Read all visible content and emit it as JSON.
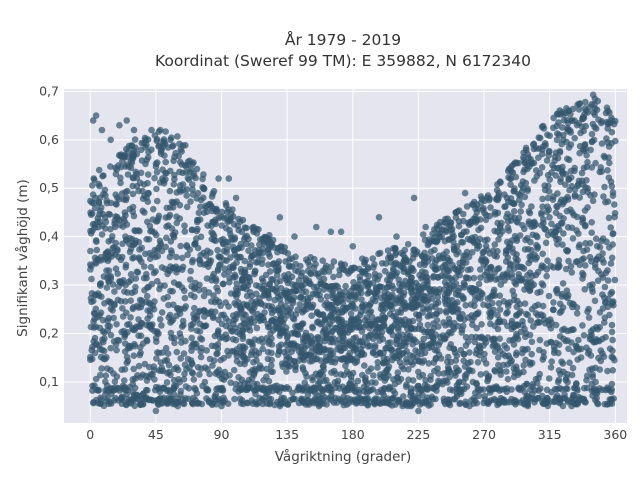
{
  "chart_data": {
    "type": "scatter",
    "title": "År 1979 - 2019",
    "subtitle": "Koordinat (Sweref 99 TM): E 359882, N 6172340",
    "xlabel": "Vågriktning (grader)",
    "ylabel": "Signifikant våghöjd (m)",
    "xlim": [
      -18,
      368
    ],
    "ylim": [
      0.015,
      0.705
    ],
    "x_ticks": [
      0,
      45,
      90,
      135,
      180,
      225,
      270,
      315,
      360
    ],
    "x_tick_labels": [
      "0",
      "45",
      "90",
      "135",
      "180",
      "225",
      "270",
      "315",
      "360"
    ],
    "y_ticks": [
      0.1,
      0.2,
      0.3,
      0.4,
      0.5,
      0.6,
      0.7
    ],
    "y_tick_labels": [
      "0,1",
      "0,2",
      "0,3",
      "0,4",
      "0,5",
      "0,6",
      "0,7"
    ],
    "grid": true,
    "marker_color": "#33566e",
    "background_color": "#e5e5ef",
    "envelope": {
      "direction": [
        0,
        10,
        20,
        30,
        40,
        50,
        60,
        70,
        80,
        90,
        100,
        110,
        120,
        130,
        140,
        150,
        160,
        170,
        180,
        190,
        200,
        210,
        220,
        230,
        240,
        250,
        260,
        270,
        280,
        290,
        300,
        310,
        320,
        330,
        340,
        350,
        360
      ],
      "dense_upper": [
        0.5,
        0.49,
        0.52,
        0.55,
        0.56,
        0.57,
        0.56,
        0.52,
        0.47,
        0.43,
        0.4,
        0.38,
        0.36,
        0.34,
        0.32,
        0.31,
        0.3,
        0.3,
        0.3,
        0.31,
        0.32,
        0.33,
        0.34,
        0.36,
        0.38,
        0.4,
        0.42,
        0.44,
        0.47,
        0.5,
        0.54,
        0.58,
        0.61,
        0.63,
        0.64,
        0.65,
        0.6
      ],
      "dense_lower": [
        0.17,
        0.17,
        0.17,
        0.17,
        0.17,
        0.17,
        0.17,
        0.17,
        0.16,
        0.16,
        0.15,
        0.15,
        0.14,
        0.14,
        0.14,
        0.14,
        0.14,
        0.14,
        0.14,
        0.14,
        0.14,
        0.14,
        0.14,
        0.14,
        0.14,
        0.14,
        0.14,
        0.15,
        0.15,
        0.15,
        0.16,
        0.16,
        0.16,
        0.16,
        0.17,
        0.17,
        0.17
      ],
      "max_observed": 0.68,
      "min_observed": 0.04
    },
    "outliers": [
      {
        "x": 2,
        "y": 0.64
      },
      {
        "x": 4,
        "y": 0.65
      },
      {
        "x": 8,
        "y": 0.62
      },
      {
        "x": 14,
        "y": 0.6
      },
      {
        "x": 20,
        "y": 0.63
      },
      {
        "x": 25,
        "y": 0.64
      },
      {
        "x": 30,
        "y": 0.62
      },
      {
        "x": 38,
        "y": 0.6
      },
      {
        "x": 42,
        "y": 0.62
      },
      {
        "x": 48,
        "y": 0.62
      },
      {
        "x": 55,
        "y": 0.6
      },
      {
        "x": 62,
        "y": 0.58
      },
      {
        "x": 70,
        "y": 0.55
      },
      {
        "x": 78,
        "y": 0.5
      },
      {
        "x": 88,
        "y": 0.52
      },
      {
        "x": 95,
        "y": 0.52
      },
      {
        "x": 100,
        "y": 0.48
      },
      {
        "x": 112,
        "y": 0.42
      },
      {
        "x": 130,
        "y": 0.44
      },
      {
        "x": 140,
        "y": 0.4
      },
      {
        "x": 155,
        "y": 0.42
      },
      {
        "x": 165,
        "y": 0.41
      },
      {
        "x": 172,
        "y": 0.41
      },
      {
        "x": 180,
        "y": 0.38
      },
      {
        "x": 198,
        "y": 0.44
      },
      {
        "x": 210,
        "y": 0.4
      },
      {
        "x": 222,
        "y": 0.48
      },
      {
        "x": 230,
        "y": 0.42
      },
      {
        "x": 240,
        "y": 0.43
      },
      {
        "x": 257,
        "y": 0.49
      },
      {
        "x": 265,
        "y": 0.45
      },
      {
        "x": 268,
        "y": 0.47
      },
      {
        "x": 280,
        "y": 0.48
      },
      {
        "x": 288,
        "y": 0.52
      },
      {
        "x": 300,
        "y": 0.57
      },
      {
        "x": 310,
        "y": 0.58
      },
      {
        "x": 320,
        "y": 0.6
      },
      {
        "x": 330,
        "y": 0.64
      },
      {
        "x": 340,
        "y": 0.66
      },
      {
        "x": 348,
        "y": 0.68
      },
      {
        "x": 355,
        "y": 0.66
      },
      {
        "x": 60,
        "y": 0.05
      },
      {
        "x": 90,
        "y": 0.05
      },
      {
        "x": 130,
        "y": 0.05
      },
      {
        "x": 220,
        "y": 0.05
      },
      {
        "x": 260,
        "y": 0.05
      },
      {
        "x": 300,
        "y": 0.05
      },
      {
        "x": 330,
        "y": 0.05
      },
      {
        "x": 45,
        "y": 0.04
      },
      {
        "x": 225,
        "y": 0.04
      }
    ]
  }
}
